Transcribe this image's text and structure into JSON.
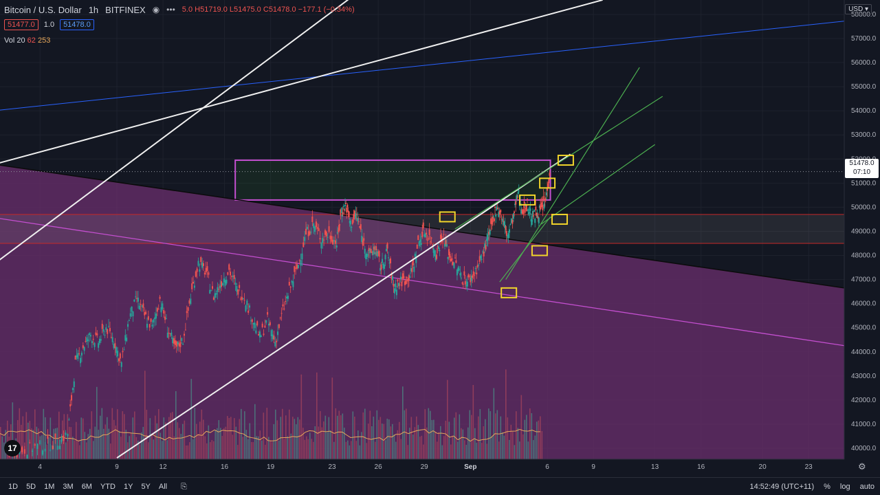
{
  "header": {
    "symbol": "Bitcoin / U.S. Dollar",
    "interval": "1h",
    "exchange": "BITFINEX",
    "ohlc_open_tail": "5.0",
    "high": "H51719.0",
    "low": "L51475.0",
    "close": "C51478.0",
    "change": "−177.1 (−0.34%)"
  },
  "trade": {
    "sell": "51477.0",
    "spread": "1.0",
    "buy": "51478.0"
  },
  "volume": {
    "label": "Vol 20",
    "v1": "62",
    "v2": "253"
  },
  "currency": "USD ▾",
  "last_price": {
    "price": "51478.0",
    "countdown": "07:10"
  },
  "toolbar": {
    "ranges": [
      "1D",
      "5D",
      "1M",
      "3M",
      "6M",
      "YTD",
      "1Y",
      "5Y",
      "All"
    ],
    "time": "14:52:49 (UTC+11)",
    "percent": "%",
    "log": "log",
    "auto": "auto"
  },
  "colors": {
    "up": "#26a69a",
    "down": "#ef5350",
    "zone_purple": "#5a2a5e",
    "box_magenta": "#c44fd0",
    "marker": "#f2d52b",
    "trend_green": "#4caf50",
    "channel": "#ffffff",
    "blue_line": "#2962ff"
  },
  "chart_data": {
    "type": "candlestick",
    "y_ticks": [
      "58000.0",
      "57000.0",
      "56000.0",
      "55000.0",
      "54000.0",
      "53000.0",
      "52000.0",
      "51000.0",
      "50000.0",
      "49000.0",
      "48000.0",
      "47000.0",
      "46000.0",
      "45000.0",
      "44000.0",
      "43000.0",
      "42000.0",
      "41000.0",
      "40000.0"
    ],
    "x_ticks": [
      {
        "label": "4",
        "day": 4
      },
      {
        "label": "9",
        "day": 9
      },
      {
        "label": "12",
        "day": 12
      },
      {
        "label": "16",
        "day": 16
      },
      {
        "label": "19",
        "day": 19
      },
      {
        "label": "23",
        "day": 23
      },
      {
        "label": "26",
        "day": 26
      },
      {
        "label": "29",
        "day": 29
      },
      {
        "label": "Sep",
        "day": 32
      },
      {
        "label": "6",
        "day": 37
      },
      {
        "label": "9",
        "day": 40
      },
      {
        "label": "13",
        "day": 44
      },
      {
        "label": "16",
        "day": 47
      },
      {
        "label": "20",
        "day": 51
      },
      {
        "label": "23",
        "day": 54
      }
    ],
    "ylim": [
      39600,
      58200
    ],
    "price_path": [
      [
        2.0,
        39800
      ],
      [
        3.0,
        39950
      ],
      [
        4.0,
        40100
      ],
      [
        5.0,
        40200
      ],
      [
        5.8,
        40600
      ],
      [
        6.3,
        43500
      ],
      [
        6.8,
        44200
      ],
      [
        7.3,
        44700
      ],
      [
        7.8,
        44400
      ],
      [
        8.3,
        45000
      ],
      [
        8.8,
        44500
      ],
      [
        9.3,
        43500
      ],
      [
        9.8,
        45400
      ],
      [
        10.3,
        46200
      ],
      [
        10.8,
        45500
      ],
      [
        11.3,
        45000
      ],
      [
        11.8,
        46200
      ],
      [
        12.3,
        45000
      ],
      [
        12.8,
        44100
      ],
      [
        13.3,
        44500
      ],
      [
        13.8,
        46300
      ],
      [
        14.3,
        47700
      ],
      [
        14.8,
        47300
      ],
      [
        15.3,
        46300
      ],
      [
        15.8,
        46900
      ],
      [
        16.3,
        47400
      ],
      [
        16.8,
        46600
      ],
      [
        17.3,
        46300
      ],
      [
        17.8,
        45400
      ],
      [
        18.3,
        44600
      ],
      [
        18.8,
        45300
      ],
      [
        19.3,
        44400
      ],
      [
        19.8,
        45700
      ],
      [
        20.3,
        46700
      ],
      [
        20.8,
        47600
      ],
      [
        21.3,
        48900
      ],
      [
        21.8,
        49300
      ],
      [
        22.3,
        48700
      ],
      [
        22.8,
        48900
      ],
      [
        23.3,
        48500
      ],
      [
        23.6,
        49800
      ],
      [
        23.9,
        50100
      ],
      [
        24.2,
        49300
      ],
      [
        24.6,
        49700
      ],
      [
        25.0,
        48600
      ],
      [
        25.4,
        48000
      ],
      [
        25.8,
        48300
      ],
      [
        26.2,
        47500
      ],
      [
        26.6,
        48200
      ],
      [
        27.0,
        46700
      ],
      [
        27.4,
        46900
      ],
      [
        27.8,
        47000
      ],
      [
        28.2,
        47300
      ],
      [
        28.6,
        48500
      ],
      [
        29.0,
        49000
      ],
      [
        29.4,
        48700
      ],
      [
        29.8,
        48100
      ],
      [
        30.2,
        48800
      ],
      [
        30.6,
        48000
      ],
      [
        31.0,
        47700
      ],
      [
        31.4,
        47100
      ],
      [
        31.8,
        46900
      ],
      [
        32.2,
        47200
      ],
      [
        32.6,
        47700
      ],
      [
        33.0,
        48400
      ],
      [
        33.4,
        49200
      ],
      [
        33.7,
        50100
      ],
      [
        34.1,
        49500
      ],
      [
        34.4,
        48800
      ],
      [
        34.8,
        49600
      ],
      [
        35.1,
        50600
      ],
      [
        35.4,
        49900
      ],
      [
        35.7,
        50100
      ],
      [
        36.0,
        49600
      ],
      [
        36.3,
        49700
      ],
      [
        36.6,
        49900
      ],
      [
        36.9,
        50300
      ],
      [
        37.2,
        51700
      ]
    ],
    "channel_upper": [
      [
        -3.5,
        45500
      ],
      [
        25.7,
        59400
      ]
    ],
    "channel_upper2": [
      [
        -3.5,
        51000
      ],
      [
        40.6,
        58600
      ]
    ],
    "channel_lower": [
      [
        9.0,
        39600
      ],
      [
        38.5,
        52200
      ]
    ],
    "blue_line": [
      [
        -3.5,
        53700
      ],
      [
        59.0,
        57900
      ]
    ],
    "descending_line": [
      [
        -3.5,
        52200
      ],
      [
        59.0,
        46400
      ]
    ],
    "purple_line": [
      [
        -3.5,
        50000
      ],
      [
        59.0,
        44000
      ]
    ],
    "green_up_1": [
      [
        34.3,
        47000
      ],
      [
        43.0,
        55800
      ]
    ],
    "green_up_2": [
      [
        31.0,
        49100
      ],
      [
        44.5,
        54600
      ]
    ],
    "green_up_3": [
      [
        33.9,
        46900
      ],
      [
        37.2,
        49600
      ]
    ],
    "green_up_4": [
      [
        36.6,
        49300
      ],
      [
        44.0,
        52600
      ]
    ],
    "box_resistance": {
      "x0": 16.7,
      "x1": 37.2,
      "y0": 50300,
      "y1": 51950
    },
    "zone_red": {
      "x0": -2.0,
      "x1": 59.0,
      "y0": 48500,
      "y1": 49700
    },
    "yellow_markers": [
      {
        "day": 30.5,
        "price": 49600
      },
      {
        "day": 34.5,
        "price": 46450
      },
      {
        "day": 35.7,
        "price": 50300
      },
      {
        "day": 37.0,
        "price": 51000
      },
      {
        "day": 36.5,
        "price": 48200
      },
      {
        "day": 37.8,
        "price": 49500
      },
      {
        "day": 38.2,
        "price": 51950
      }
    ],
    "volume_level": [
      0.55,
      0.35,
      0.6,
      0.3,
      0.7,
      0.4,
      0.5,
      0.3,
      0.65,
      0.45,
      0.35,
      0.5,
      0.3,
      0.55,
      0.4,
      0.25,
      0.45,
      0.3,
      0.35,
      0.5
    ]
  }
}
